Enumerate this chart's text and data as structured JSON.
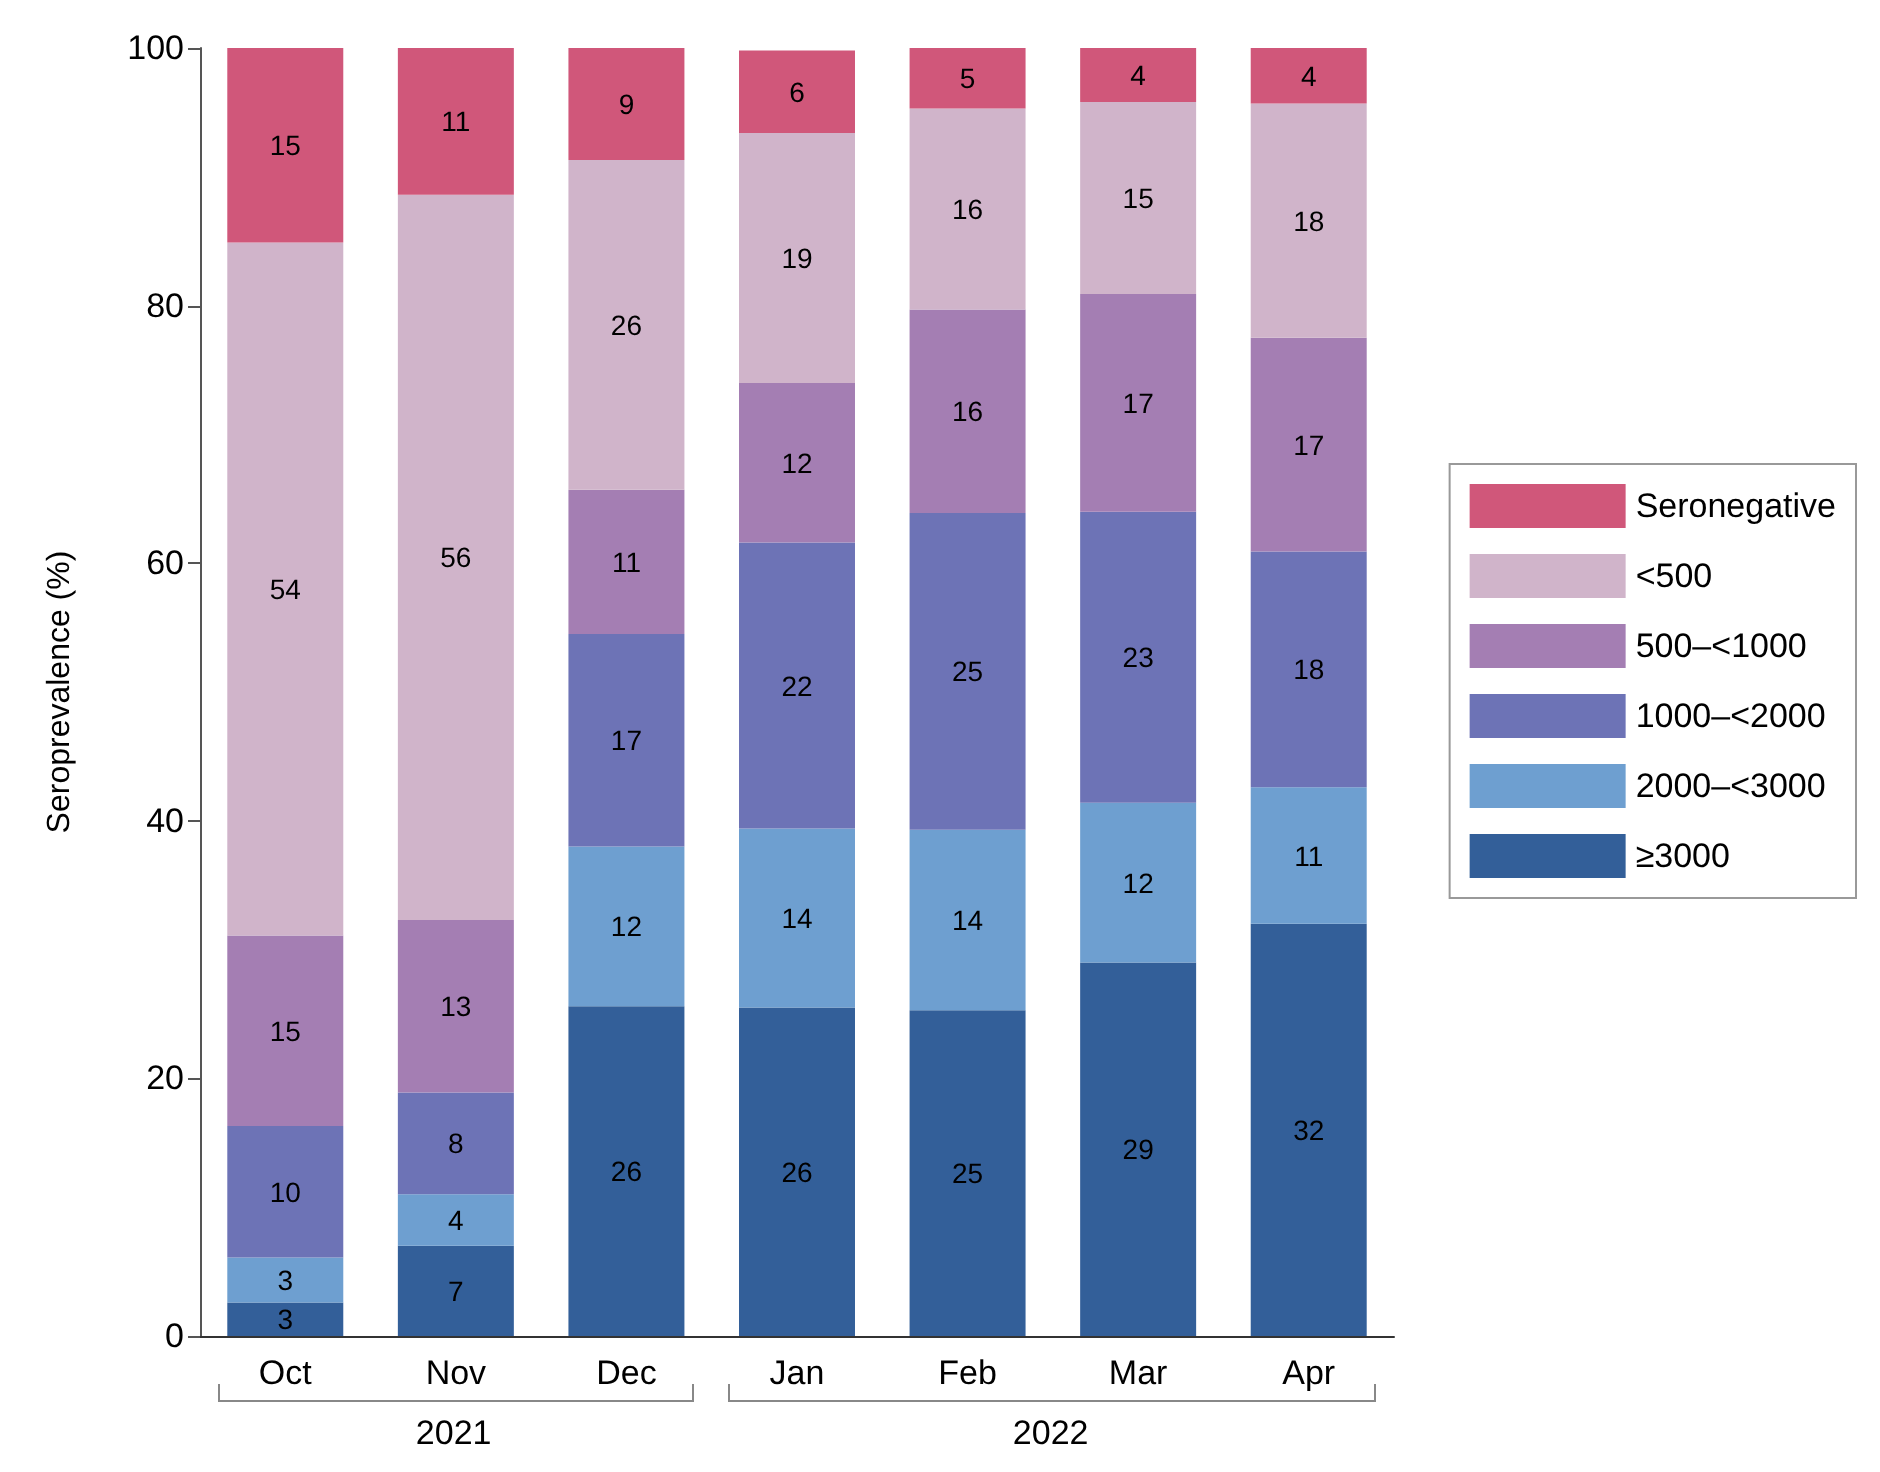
{
  "chart_data": {
    "type": "bar",
    "stacked": true,
    "ylabel": "Seroprevalence (%)",
    "categories": [
      "Oct",
      "Nov",
      "Dec",
      "Jan",
      "Feb",
      "Mar",
      "Apr"
    ],
    "series": [
      {
        "name": "≥3000",
        "color": "#335f99",
        "values": [
          2.6,
          7.0,
          25.6,
          25.5,
          25.3,
          29.0,
          32.0
        ],
        "value_labels": [
          "3",
          "7",
          "26",
          "26",
          "25",
          "29",
          "32"
        ]
      },
      {
        "name": "2000–<3000",
        "color": "#6e9fd0",
        "values": [
          3.5,
          4.0,
          12.4,
          13.9,
          14.0,
          12.4,
          10.6
        ],
        "value_labels": [
          "3",
          "4",
          "12",
          "14",
          "14",
          "12",
          "11"
        ]
      },
      {
        "name": "1000–<2000",
        "color": "#6d73b6",
        "values": [
          10.2,
          7.9,
          16.5,
          22.2,
          24.6,
          22.6,
          18.3
        ],
        "value_labels": [
          "10",
          "8",
          "17",
          "22",
          "25",
          "23",
          "18"
        ]
      },
      {
        "name": "500–<1000",
        "color": "#a47eb3",
        "values": [
          14.8,
          13.4,
          11.2,
          12.4,
          15.8,
          16.9,
          16.6
        ],
        "value_labels": [
          "15",
          "13",
          "11",
          "12",
          "16",
          "17",
          "17"
        ]
      },
      {
        "name": "<500",
        "color": "#d0b4ca",
        "values": [
          53.8,
          56.3,
          25.6,
          19.4,
          15.6,
          14.9,
          18.2
        ],
        "value_labels": [
          "54",
          "56",
          "26",
          "19",
          "16",
          "15",
          "18"
        ]
      },
      {
        "name": "Seronegative",
        "color": "#d0577a",
        "values": [
          15.1,
          11.4,
          8.7,
          6.4,
          4.7,
          4.2,
          4.3
        ],
        "value_labels": [
          "15",
          "11",
          "9",
          "6",
          "5",
          "4",
          "4"
        ]
      }
    ],
    "ylim": [
      0,
      100
    ],
    "yticks": [
      0,
      20,
      40,
      60,
      80,
      100
    ],
    "grid": false,
    "legend": "right",
    "annotations": [
      "2021",
      "2022"
    ]
  }
}
